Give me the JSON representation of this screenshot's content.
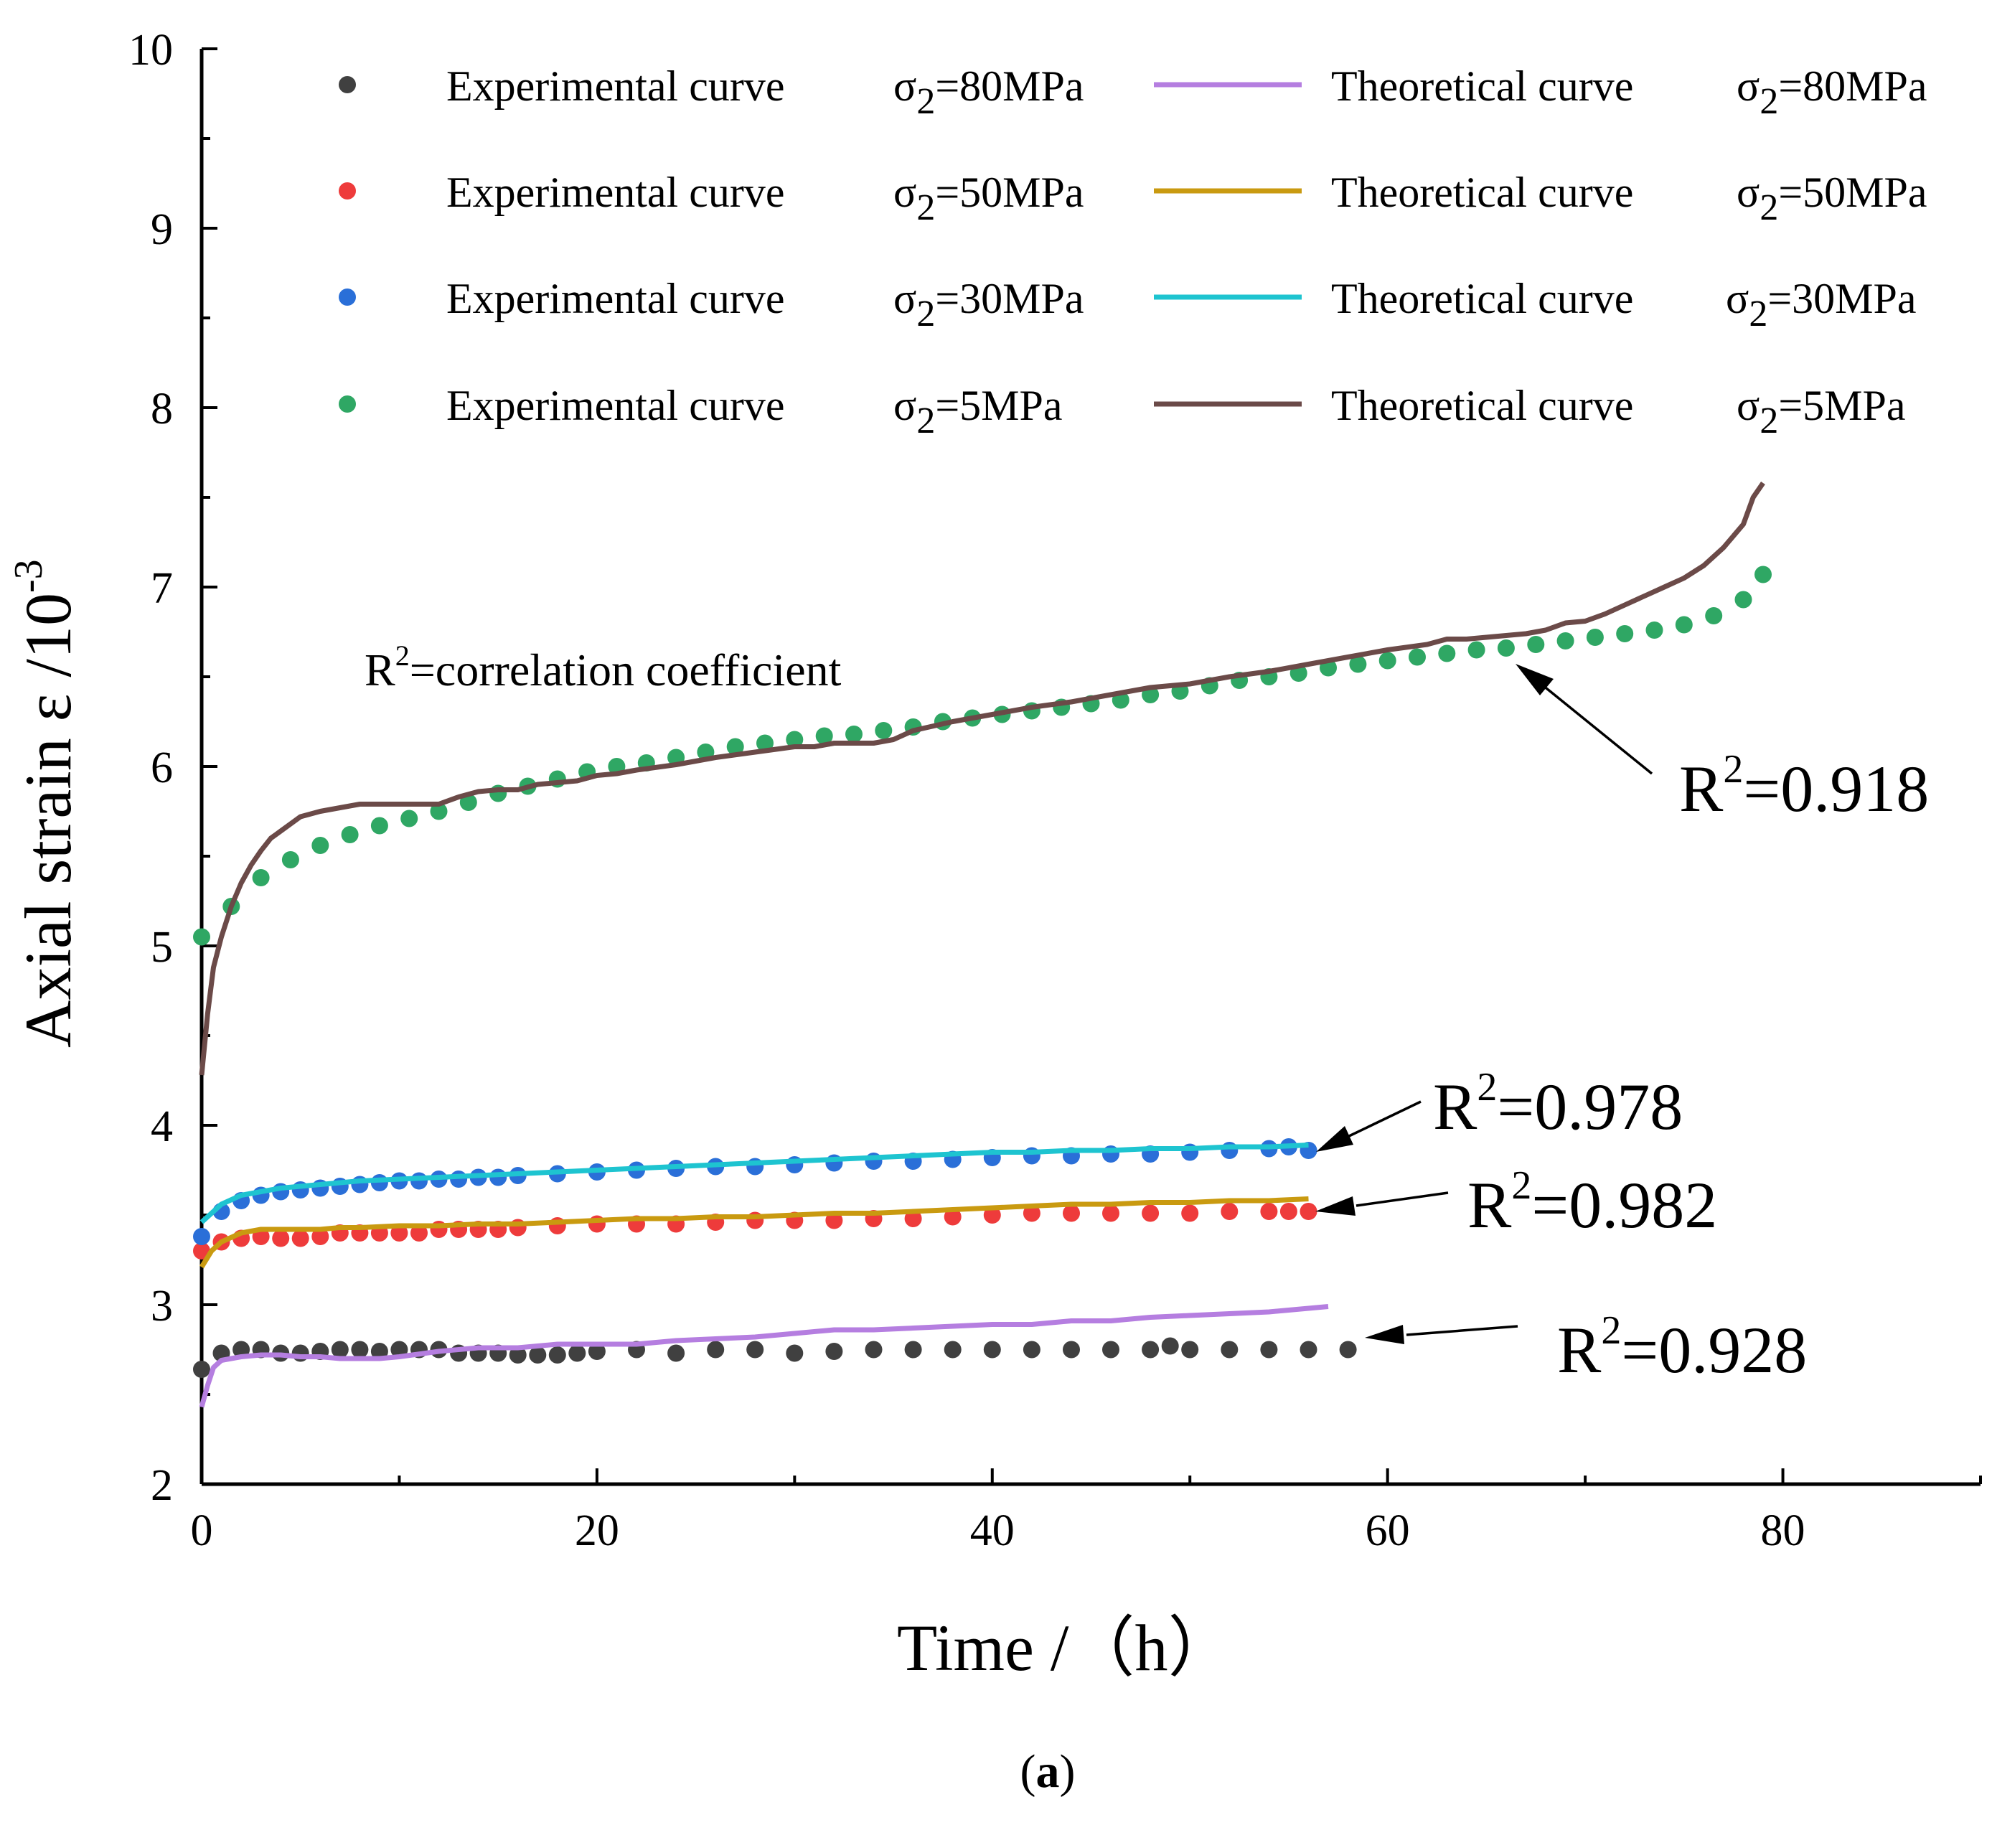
{
  "chart_data": {
    "type": "line",
    "title": "",
    "xlabel": "Time /（h）",
    "ylabel": "Axial strain ε /10",
    "ylabel_sup": "-3",
    "xlim": [
      0,
      90
    ],
    "ylim": [
      2,
      10
    ],
    "xticks": [
      0,
      20,
      40,
      60,
      80
    ],
    "yticks": [
      2,
      3,
      4,
      5,
      6,
      7,
      8,
      9,
      10
    ],
    "grid": false,
    "legend_position": "top",
    "legend": [
      {
        "name": "Experimental curve",
        "sigma": "σ",
        "sub": "2",
        "value": "=80MPa",
        "kind": "experimental",
        "color": "#404040"
      },
      {
        "name": "Theoretical curve",
        "sigma": "σ",
        "sub": "2",
        "value": "=80MPa",
        "kind": "theoretical",
        "color": "#b57ee0"
      },
      {
        "name": "Experimental curve",
        "sigma": "σ",
        "sub": "2",
        "value": "=50MPa",
        "kind": "experimental",
        "color": "#ee3b3b"
      },
      {
        "name": "Theoretical curve",
        "sigma": "σ",
        "sub": "2",
        "value": "=50MPa",
        "kind": "theoretical",
        "color": "#c99a10"
      },
      {
        "name": "Experimental curve",
        "sigma": "σ",
        "sub": "2",
        "value": "=30MPa",
        "kind": "experimental",
        "color": "#2a6fd8"
      },
      {
        "name": "Theoretical curve",
        "sigma": "σ",
        "sub": "2",
        "value": "=30MPa",
        "kind": "theoretical",
        "color": "#1ec4d0"
      },
      {
        "name": "Experimental curve",
        "sigma": "σ",
        "sub": "2",
        "value": "=5MPa",
        "kind": "experimental",
        "color": "#2fa764"
      },
      {
        "name": "Theoretical curve",
        "sigma": "σ",
        "sub": "2",
        "value": "=5MPa",
        "kind": "theoretical",
        "color": "#6b4a48"
      }
    ],
    "series": [
      {
        "name": "Experimental curve σ2=80MPa",
        "kind": "scatter",
        "color": "#404040",
        "x": [
          0,
          1,
          2,
          3,
          4,
          5,
          6,
          7,
          8,
          9,
          10,
          11,
          12,
          13,
          14,
          15,
          16,
          17,
          18,
          19,
          20,
          22,
          24,
          26,
          28,
          30,
          32,
          34,
          36,
          38,
          40,
          42,
          44,
          46,
          48,
          49,
          50,
          52,
          54,
          56,
          58
        ],
        "y": [
          2.64,
          2.73,
          2.75,
          2.75,
          2.73,
          2.73,
          2.74,
          2.75,
          2.75,
          2.74,
          2.75,
          2.75,
          2.75,
          2.73,
          2.73,
          2.73,
          2.72,
          2.72,
          2.72,
          2.73,
          2.74,
          2.75,
          2.73,
          2.75,
          2.75,
          2.73,
          2.74,
          2.75,
          2.75,
          2.75,
          2.75,
          2.75,
          2.75,
          2.75,
          2.75,
          2.77,
          2.75,
          2.75,
          2.75,
          2.75,
          2.75
        ]
      },
      {
        "name": "Theoretical curve σ2=80MPa",
        "kind": "line",
        "color": "#b57ee0",
        "x": [
          0,
          0.3,
          0.6,
          1,
          2,
          3,
          4,
          5,
          6,
          7,
          8,
          9,
          10,
          12,
          14,
          16,
          18,
          20,
          22,
          24,
          26,
          28,
          30,
          32,
          34,
          36,
          38,
          40,
          42,
          44,
          46,
          48,
          50,
          52,
          54,
          55,
          56,
          57
        ],
        "y": [
          2.43,
          2.55,
          2.65,
          2.69,
          2.71,
          2.72,
          2.72,
          2.71,
          2.71,
          2.7,
          2.7,
          2.7,
          2.71,
          2.74,
          2.76,
          2.76,
          2.78,
          2.78,
          2.78,
          2.8,
          2.81,
          2.82,
          2.84,
          2.86,
          2.86,
          2.87,
          2.88,
          2.89,
          2.89,
          2.91,
          2.91,
          2.93,
          2.94,
          2.95,
          2.96,
          2.97,
          2.98,
          2.99
        ]
      },
      {
        "name": "Experimental curve σ2=50MPa",
        "kind": "scatter",
        "color": "#ee3b3b",
        "x": [
          0,
          1,
          2,
          3,
          4,
          5,
          6,
          7,
          8,
          9,
          10,
          11,
          12,
          13,
          14,
          15,
          16,
          18,
          20,
          22,
          24,
          26,
          28,
          30,
          32,
          34,
          36,
          38,
          40,
          42,
          44,
          46,
          48,
          50,
          52,
          54,
          55,
          56
        ],
        "y": [
          3.3,
          3.35,
          3.37,
          3.38,
          3.37,
          3.37,
          3.38,
          3.4,
          3.4,
          3.4,
          3.4,
          3.4,
          3.42,
          3.42,
          3.42,
          3.42,
          3.43,
          3.44,
          3.45,
          3.45,
          3.45,
          3.46,
          3.47,
          3.47,
          3.47,
          3.48,
          3.48,
          3.49,
          3.5,
          3.51,
          3.51,
          3.51,
          3.51,
          3.51,
          3.52,
          3.52,
          3.52,
          3.52
        ]
      },
      {
        "name": "Theoretical curve σ2=50MPa",
        "kind": "line",
        "color": "#c99a10",
        "x": [
          0,
          0.5,
          1,
          2,
          3,
          4,
          5,
          6,
          7,
          8,
          10,
          12,
          14,
          16,
          18,
          20,
          22,
          24,
          26,
          28,
          30,
          32,
          34,
          36,
          38,
          40,
          42,
          44,
          46,
          48,
          50,
          52,
          54,
          56
        ],
        "y": [
          3.21,
          3.3,
          3.35,
          3.4,
          3.42,
          3.42,
          3.42,
          3.42,
          3.43,
          3.43,
          3.44,
          3.44,
          3.45,
          3.45,
          3.46,
          3.47,
          3.48,
          3.48,
          3.49,
          3.49,
          3.5,
          3.51,
          3.51,
          3.52,
          3.53,
          3.54,
          3.55,
          3.56,
          3.56,
          3.57,
          3.57,
          3.58,
          3.58,
          3.59
        ]
      },
      {
        "name": "Experimental curve σ2=30MPa",
        "kind": "scatter",
        "color": "#2a6fd8",
        "x": [
          0,
          1,
          2,
          3,
          4,
          5,
          6,
          7,
          8,
          9,
          10,
          11,
          12,
          13,
          14,
          15,
          16,
          18,
          20,
          22,
          24,
          26,
          28,
          30,
          32,
          34,
          36,
          38,
          40,
          42,
          44,
          46,
          48,
          50,
          52,
          54,
          55,
          56
        ],
        "y": [
          3.38,
          3.52,
          3.58,
          3.61,
          3.63,
          3.64,
          3.65,
          3.66,
          3.67,
          3.68,
          3.69,
          3.69,
          3.7,
          3.7,
          3.71,
          3.71,
          3.72,
          3.73,
          3.74,
          3.75,
          3.76,
          3.77,
          3.77,
          3.78,
          3.79,
          3.8,
          3.8,
          3.81,
          3.82,
          3.83,
          3.83,
          3.84,
          3.84,
          3.85,
          3.86,
          3.87,
          3.88,
          3.86
        ]
      },
      {
        "name": "Theoretical curve σ2=30MPa",
        "kind": "line",
        "color": "#1ec4d0",
        "x": [
          0,
          0.5,
          1,
          2,
          3,
          4,
          5,
          6,
          7,
          8,
          10,
          12,
          14,
          16,
          18,
          20,
          22,
          24,
          26,
          28,
          30,
          32,
          34,
          36,
          38,
          40,
          42,
          44,
          46,
          48,
          50,
          52,
          54,
          56
        ],
        "y": [
          3.46,
          3.51,
          3.56,
          3.61,
          3.63,
          3.65,
          3.66,
          3.67,
          3.68,
          3.69,
          3.7,
          3.71,
          3.72,
          3.73,
          3.74,
          3.75,
          3.76,
          3.77,
          3.78,
          3.79,
          3.8,
          3.81,
          3.82,
          3.83,
          3.84,
          3.85,
          3.85,
          3.86,
          3.86,
          3.87,
          3.87,
          3.88,
          3.88,
          3.89
        ]
      },
      {
        "name": "Experimental curve σ2=5MPa",
        "kind": "scatter",
        "color": "#2fa764",
        "x": [
          0,
          1.5,
          3,
          4.5,
          6,
          7.5,
          9,
          10.5,
          12,
          13.5,
          15,
          16.5,
          18,
          19.5,
          21,
          22.5,
          24,
          25.5,
          27,
          28.5,
          30,
          31.5,
          33,
          34.5,
          36,
          37.5,
          39,
          40.5,
          42,
          43.5,
          45,
          46.5,
          48,
          49.5,
          51,
          52.5,
          54,
          55.5,
          57,
          58.5,
          60,
          61.5,
          63,
          64.5,
          66,
          67.5,
          69,
          70.5,
          72,
          73.5,
          75,
          76.5,
          78,
          79
        ],
        "y": [
          5.05,
          5.22,
          5.38,
          5.48,
          5.56,
          5.62,
          5.67,
          5.71,
          5.75,
          5.8,
          5.85,
          5.89,
          5.93,
          5.97,
          6.0,
          6.02,
          6.05,
          6.08,
          6.11,
          6.13,
          6.15,
          6.17,
          6.18,
          6.2,
          6.22,
          6.25,
          6.27,
          6.29,
          6.31,
          6.33,
          6.35,
          6.37,
          6.4,
          6.42,
          6.45,
          6.48,
          6.5,
          6.52,
          6.55,
          6.57,
          6.59,
          6.61,
          6.63,
          6.65,
          6.66,
          6.68,
          6.7,
          6.72,
          6.74,
          6.76,
          6.79,
          6.84,
          6.93,
          7.07
        ]
      },
      {
        "name": "Theoretical curve σ2=5MPa",
        "kind": "line",
        "color": "#6b4a48",
        "x": [
          0,
          0.3,
          0.6,
          1,
          1.5,
          2,
          2.5,
          3,
          3.5,
          4,
          5,
          6,
          7,
          8,
          9,
          10,
          11,
          12,
          13,
          14,
          15,
          16,
          17,
          18,
          19,
          20,
          21,
          22,
          24,
          26,
          28,
          30,
          31,
          32,
          34,
          35,
          36,
          38,
          40,
          42,
          44,
          46,
          48,
          50,
          52,
          54,
          56,
          58,
          60,
          62,
          63,
          64,
          65,
          66,
          67,
          68,
          68.5,
          69,
          70,
          71,
          72,
          73,
          74,
          75,
          76,
          77,
          78,
          78.5,
          79
        ],
        "y": [
          4.28,
          4.62,
          4.88,
          5.05,
          5.22,
          5.35,
          5.45,
          5.53,
          5.6,
          5.64,
          5.72,
          5.75,
          5.77,
          5.79,
          5.79,
          5.79,
          5.79,
          5.79,
          5.83,
          5.86,
          5.87,
          5.87,
          5.9,
          5.91,
          5.92,
          5.95,
          5.96,
          5.98,
          6.01,
          6.05,
          6.08,
          6.11,
          6.11,
          6.13,
          6.13,
          6.15,
          6.2,
          6.25,
          6.29,
          6.33,
          6.36,
          6.4,
          6.44,
          6.46,
          6.5,
          6.53,
          6.57,
          6.61,
          6.65,
          6.68,
          6.71,
          6.71,
          6.72,
          6.73,
          6.74,
          6.76,
          6.78,
          6.8,
          6.81,
          6.85,
          6.9,
          6.95,
          7.0,
          7.05,
          7.12,
          7.22,
          7.35,
          7.5,
          7.58
        ]
      }
    ],
    "annotations": {
      "correlation_note": {
        "prefix": "R",
        "sup": "2",
        "text": "=correlation coefficient"
      },
      "r2_labels": [
        {
          "prefix": "R",
          "sup": "2",
          "value": "=0.918"
        },
        {
          "prefix": "R",
          "sup": "2",
          "value": "=0.978"
        },
        {
          "prefix": "R",
          "sup": "2",
          "value": "=0.982"
        },
        {
          "prefix": "R",
          "sup": "2",
          "value": "=0.928"
        }
      ]
    },
    "caption": {
      "open": "(",
      "letter": "a",
      "close": ")"
    }
  }
}
